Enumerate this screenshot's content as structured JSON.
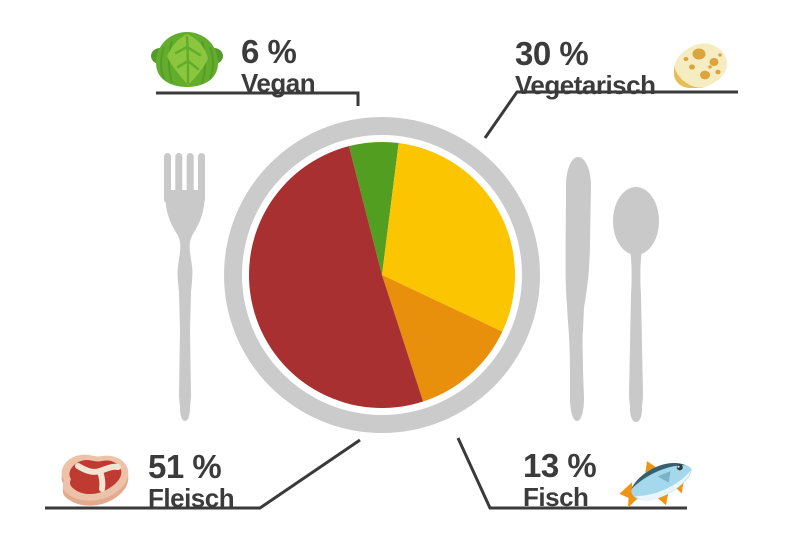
{
  "chart_data": {
    "type": "pie",
    "title": "",
    "unit": "%",
    "start_angle_deg": -14.4,
    "order_clockwise": [
      "Vegan",
      "Vegetarisch",
      "Fisch",
      "Fleisch"
    ],
    "slices": [
      {
        "label": "Vegan",
        "value": 6,
        "display": "6 %",
        "color": "#529e20",
        "icon": "cabbage-icon"
      },
      {
        "label": "Vegetarisch",
        "value": 30,
        "display": "30 %",
        "color": "#fcc502",
        "icon": "cheese-icon"
      },
      {
        "label": "Fisch",
        "value": 13,
        "display": "13 %",
        "color": "#e8900c",
        "icon": "fish-icon"
      },
      {
        "label": "Fleisch",
        "value": 51,
        "display": "51 %",
        "color": "#a93030",
        "icon": "steak-icon"
      }
    ],
    "legend_position": "corner-callouts"
  },
  "labels": {
    "vegan": {
      "value": "6 %",
      "name": "Vegan"
    },
    "vegetarisch": {
      "value": "30 %",
      "name": "Vegetarisch"
    },
    "fisch": {
      "value": "13 %",
      "name": "Fisch"
    },
    "fleisch": {
      "value": "51 %",
      "name": "Fleisch"
    }
  },
  "colors": {
    "background": "#ffffff",
    "plate": "#cbcbcb",
    "cutlery": "#c9c9c9",
    "text": "#3b3b3b",
    "callout_line": "#3a3a3a"
  }
}
